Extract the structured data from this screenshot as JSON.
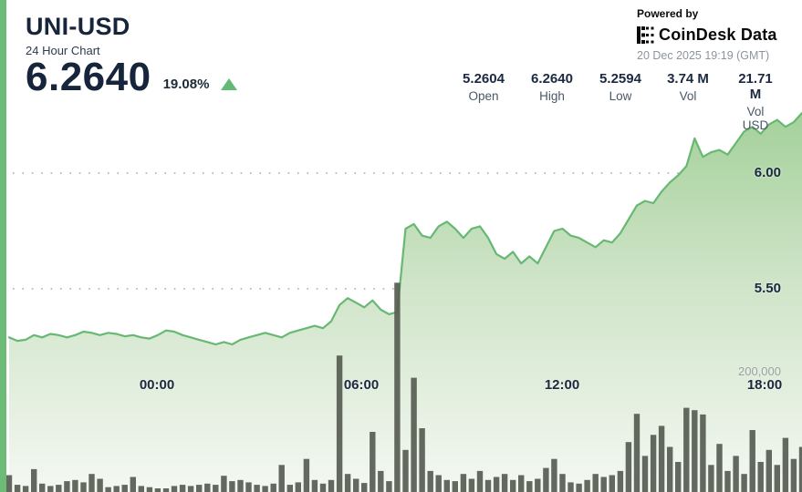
{
  "header": {
    "symbol": "UNI-USD",
    "subtitle": "24 Hour Chart",
    "price": "6.2640",
    "change_pct": "19.08%",
    "change_direction": "up"
  },
  "powered_by": {
    "label": "Powered by",
    "brand": "CoinDesk Data",
    "timestamp": "20 Dec 2025 19:19 (GMT)"
  },
  "stats": [
    {
      "value": "5.2604",
      "label": "Open"
    },
    {
      "value": "6.2640",
      "label": "High"
    },
    {
      "value": "5.2594",
      "label": "Low"
    },
    {
      "value": "3.74 M",
      "label": "Vol"
    },
    {
      "value": "21.71 M",
      "label": "Vol USD"
    }
  ],
  "chart_data": {
    "type": "area",
    "title": "UNI-USD 24 hour price with volume",
    "period": "24h",
    "x_tick_labels": [
      "00:00",
      "06:00",
      "12:00",
      "18:00"
    ],
    "y_tick_labels": [
      "6.00",
      "5.50"
    ],
    "y_tick_values": [
      6.0,
      5.5
    ],
    "volume_tick_label": "200,000",
    "volume_tick_value": 200000,
    "open": 5.2604,
    "high": 6.264,
    "low": 5.2594,
    "close": 6.264,
    "grid": "dotted-horizontal",
    "legend": "none",
    "prices": [
      5.29,
      5.275,
      5.28,
      5.3,
      5.29,
      5.305,
      5.3,
      5.29,
      5.3,
      5.315,
      5.31,
      5.3,
      5.31,
      5.305,
      5.295,
      5.3,
      5.29,
      5.285,
      5.3,
      5.32,
      5.315,
      5.3,
      5.29,
      5.28,
      5.27,
      5.26,
      5.27,
      5.26,
      5.28,
      5.29,
      5.3,
      5.31,
      5.3,
      5.29,
      5.31,
      5.32,
      5.33,
      5.34,
      5.33,
      5.36,
      5.43,
      5.46,
      5.44,
      5.42,
      5.45,
      5.41,
      5.39,
      5.4,
      5.76,
      5.78,
      5.73,
      5.72,
      5.77,
      5.79,
      5.76,
      5.72,
      5.76,
      5.77,
      5.72,
      5.65,
      5.63,
      5.66,
      5.61,
      5.64,
      5.61,
      5.68,
      5.75,
      5.76,
      5.73,
      5.72,
      5.7,
      5.68,
      5.71,
      5.7,
      5.74,
      5.8,
      5.86,
      5.88,
      5.87,
      5.92,
      5.96,
      5.99,
      6.03,
      6.15,
      6.07,
      6.09,
      6.1,
      6.08,
      6.13,
      6.18,
      6.2,
      6.17,
      6.21,
      6.23,
      6.2,
      6.22,
      6.26
    ],
    "volumes_thousands": [
      28,
      12,
      10,
      38,
      14,
      10,
      12,
      18,
      20,
      16,
      30,
      22,
      8,
      10,
      12,
      25,
      10,
      8,
      6,
      6,
      10,
      12,
      10,
      12,
      14,
      12,
      27,
      18,
      20,
      16,
      12,
      10,
      14,
      45,
      12,
      16,
      55,
      20,
      14,
      20,
      227,
      30,
      22,
      15,
      100,
      35,
      18,
      348,
      70,
      190,
      106,
      35,
      28,
      20,
      18,
      30,
      22,
      35,
      20,
      25,
      30,
      20,
      28,
      18,
      22,
      40,
      55,
      30,
      16,
      14,
      20,
      30,
      25,
      28,
      35,
      83,
      130,
      60,
      95,
      110,
      75,
      50,
      140,
      136,
      129,
      45,
      80,
      35,
      60,
      30,
      103,
      50,
      70,
      45,
      90,
      55,
      75
    ],
    "colors": {
      "line": "#67b873",
      "fill_top": "#a3d099",
      "fill_mid": "#cfe4c8",
      "fill_bottom": "#f4f8f2",
      "volume_bar": "#575c51",
      "grid_dot": "#878e87",
      "label_navy": "#1b2940",
      "label_gray": "#98a39b",
      "accent_strip": "#6cbc77",
      "accent_green": "#62ba77"
    }
  }
}
